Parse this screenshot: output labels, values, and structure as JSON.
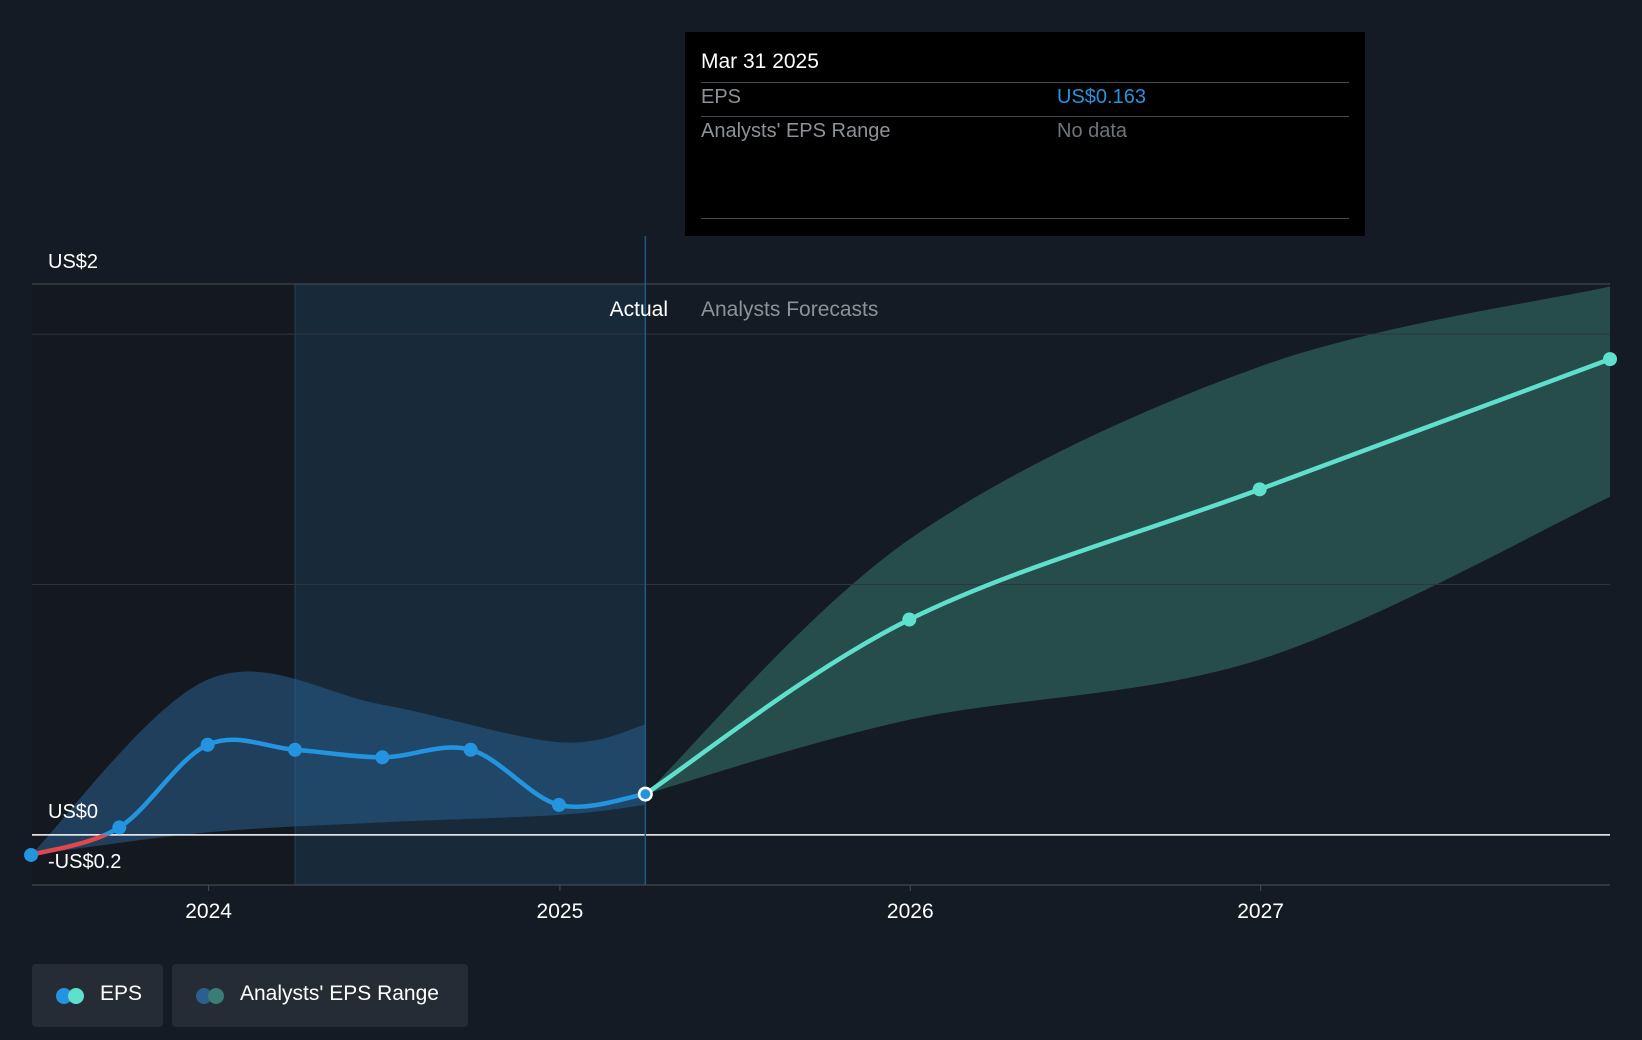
{
  "chart_data": {
    "type": "line",
    "y_labels": {
      "top": "US$2",
      "zero": "US$0",
      "bottom": "-US$0.2"
    },
    "ylim": [
      -0.2,
      2.2
    ],
    "xlim": [
      "2023-07-01",
      "2027-12-31"
    ],
    "x_ticks": [
      "2024",
      "2025",
      "2026",
      "2027"
    ],
    "region_labels": {
      "actual": "Actual",
      "forecast": "Analysts Forecasts"
    },
    "divider_date": "2025-03-31",
    "series": [
      {
        "name": "EPS",
        "color": "#2394df",
        "negative_color": "#e0484e",
        "points": [
          {
            "x": "2023-06-30",
            "y": -0.08
          },
          {
            "x": "2023-09-30",
            "y": 0.03
          },
          {
            "x": "2023-12-31",
            "y": 0.36
          },
          {
            "x": "2024-03-31",
            "y": 0.34
          },
          {
            "x": "2024-06-30",
            "y": 0.31
          },
          {
            "x": "2024-09-30",
            "y": 0.34
          },
          {
            "x": "2024-12-31",
            "y": 0.12
          },
          {
            "x": "2025-03-31",
            "y": 0.163
          }
        ]
      },
      {
        "name": "EPS",
        "color": "#5ee0cc",
        "points": [
          {
            "x": "2025-03-31",
            "y": 0.163
          },
          {
            "x": "2025-12-31",
            "y": 0.86
          },
          {
            "x": "2026-12-31",
            "y": 1.38
          },
          {
            "x": "2027-12-31",
            "y": 1.9
          }
        ]
      }
    ],
    "range_band_actual": {
      "color": "#2a5f8e",
      "upper": [
        {
          "x": "2023-06-30",
          "y": -0.08
        },
        {
          "x": "2023-12-31",
          "y": 0.62
        },
        {
          "x": "2024-06-30",
          "y": 0.52
        },
        {
          "x": "2024-12-31",
          "y": 0.37
        },
        {
          "x": "2025-03-31",
          "y": 0.44
        }
      ],
      "lower": [
        {
          "x": "2023-06-30",
          "y": -0.08
        },
        {
          "x": "2023-12-31",
          "y": 0.01
        },
        {
          "x": "2024-06-30",
          "y": 0.05
        },
        {
          "x": "2024-12-31",
          "y": 0.08
        },
        {
          "x": "2025-03-31",
          "y": 0.12
        }
      ]
    },
    "range_band_forecast": {
      "color": "#3a7d74",
      "upper": [
        {
          "x": "2025-03-31",
          "y": 0.163
        },
        {
          "x": "2025-12-31",
          "y": 1.18
        },
        {
          "x": "2026-12-31",
          "y": 1.87
        },
        {
          "x": "2027-12-31",
          "y": 2.19
        }
      ],
      "lower": [
        {
          "x": "2025-03-31",
          "y": 0.163
        },
        {
          "x": "2025-12-31",
          "y": 0.46
        },
        {
          "x": "2026-12-31",
          "y": 0.7
        },
        {
          "x": "2027-12-31",
          "y": 1.35
        }
      ]
    }
  },
  "tooltip": {
    "date": "Mar 31 2025",
    "rows": [
      {
        "label": "EPS",
        "value": "US$0.163",
        "value_color": "#2394df"
      },
      {
        "label": "Analysts' EPS Range",
        "value": "No data",
        "value_color": "#6e747a"
      }
    ]
  },
  "legend": [
    {
      "label": "EPS",
      "colors": [
        "#2394df",
        "#5ee0cc"
      ]
    },
    {
      "label": "Analysts' EPS Range",
      "colors": [
        "#2a5f8e",
        "#3a7d74"
      ]
    }
  ]
}
